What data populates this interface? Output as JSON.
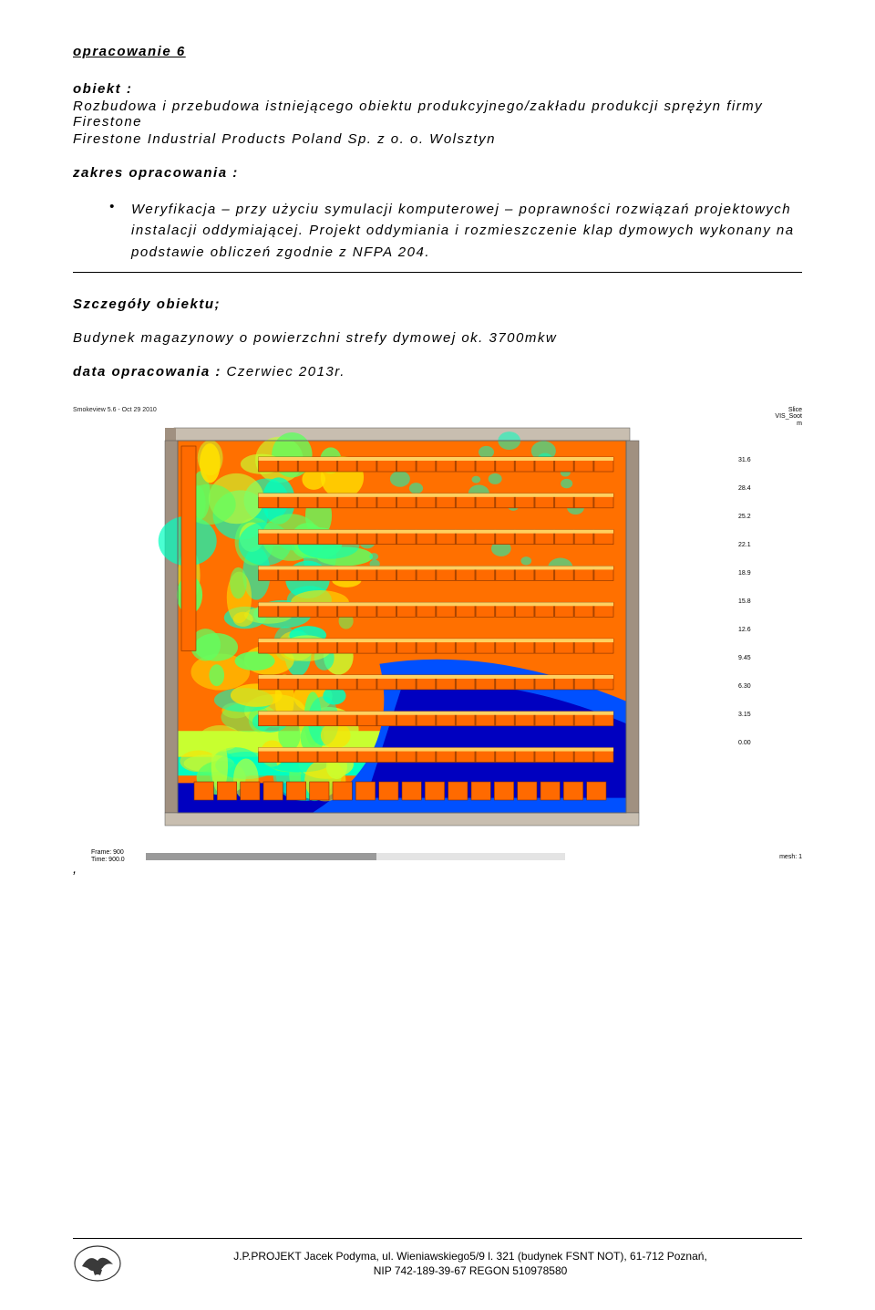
{
  "title": "opracowanie 6",
  "obiekt_label": "obiekt :",
  "obiekt_line1": "Rozbudowa i przebudowa istniejącego obiektu produkcyjnego/zakładu produkcji sprężyn firmy Firestone",
  "obiekt_line2": "Firestone Industrial Products Poland Sp. z o. o. Wolsztyn",
  "zakres_label": "zakres opracowania :",
  "bullet_text": "Weryfikacja – przy użyciu symulacji komputerowej – poprawności rozwiązań projektowych instalacji oddymiającej. Projekt oddymiania i rozmieszczenie klap dymowych wykonany na podstawie obliczeń zgodnie z NFPA 204.",
  "szczegoly_label": "Szczegóły obiektu;",
  "szczegoly_line": "Budynek magazynowy o powierzchni strefy dymowej ok. 3700mkw",
  "data_label": "data opracowania : ",
  "data_value": "Czerwiec  2013r.",
  "sim": {
    "software": "Smokeview 5.6 - Oct 29 2010",
    "slice_label1": "Slice",
    "slice_label2": "VIS_Soot",
    "slice_label3": "m",
    "frame_label": "Frame: 900",
    "time_label": "Time: 900.0",
    "mesh_label": "mesh: 1",
    "legend_values": [
      "31.6",
      "28.4",
      "25.2",
      "22.1",
      "18.9",
      "15.8",
      "12.6",
      "9.45",
      "6.30",
      "3.15",
      "0.00"
    ],
    "legend_colors": [
      "#a00000",
      "#d83800",
      "#ff7000",
      "#ffb000",
      "#ffe000",
      "#c8ff30",
      "#60ff60",
      "#00ffc0",
      "#00b0ff",
      "#0050ff",
      "#0000c0"
    ],
    "canvas": {
      "bg": "#ffffff",
      "wall": "#c8beb0",
      "wall_dark": "#a09080",
      "rack": "#ff6a00",
      "rack_gap": "#ffd060",
      "floor_scale": [
        "#0000c0",
        "#0050ff",
        "#00b0ff",
        "#00ffc0",
        "#60ff60",
        "#c8ff30",
        "#ffe000",
        "#ffb000",
        "#ff7000",
        "#d83800"
      ]
    }
  },
  "footer": {
    "line1": "J.P.PROJEKT Jacek Podyma, ul. Wieniawskiego5/9 l. 321 (budynek FSNT NOT), 61-712 Poznań,",
    "line2": "NIP 742-189-39-67 REGON 510978580"
  }
}
